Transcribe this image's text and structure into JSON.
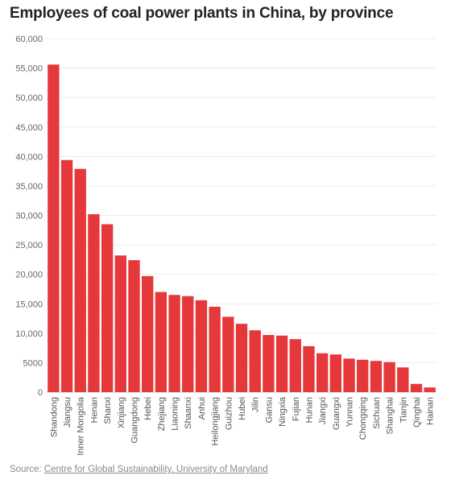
{
  "chart_data": {
    "type": "bar",
    "title": "Employees of coal power plants in China, by province",
    "xlabel": "",
    "ylabel": "",
    "ylim": [
      0,
      60000
    ],
    "yticks": [
      "0",
      "5000",
      "10,000",
      "15,000",
      "20,000",
      "25,000",
      "30,000",
      "35,000",
      "40,000",
      "45,000",
      "50,000",
      "55,000",
      "60,000"
    ],
    "grid": true,
    "legend": "none",
    "bar_color": "#e5383b",
    "categories": [
      "Shandong",
      "Jiangsu",
      "Inner Mongolia",
      "Henan",
      "Shanxi",
      "Xinjiang",
      "Guangdong",
      "Hebei",
      "Zhejiang",
      "Liaoning",
      "Shaanxi",
      "Anhui",
      "Heilongjiang",
      "Guizhou",
      "Hubei",
      "Jilin",
      "Gansu",
      "Ningxia",
      "Fujian",
      "Hunan",
      "Jiangxi",
      "Guangxi",
      "Yunnan",
      "Chongqing",
      "Sichuan",
      "Shanghai",
      "Tianjin",
      "Qinghai",
      "Hainan"
    ],
    "values": [
      55600,
      39400,
      37900,
      30200,
      28500,
      23200,
      22400,
      19700,
      17000,
      16500,
      16300,
      15600,
      14500,
      12800,
      11600,
      10500,
      9700,
      9600,
      9000,
      7800,
      6600,
      6400,
      5700,
      5500,
      5300,
      5100,
      4200,
      1400,
      800
    ]
  },
  "source": {
    "prefix": "Source: ",
    "link_text": "Centre for Global Sustainability, University of Maryland"
  }
}
